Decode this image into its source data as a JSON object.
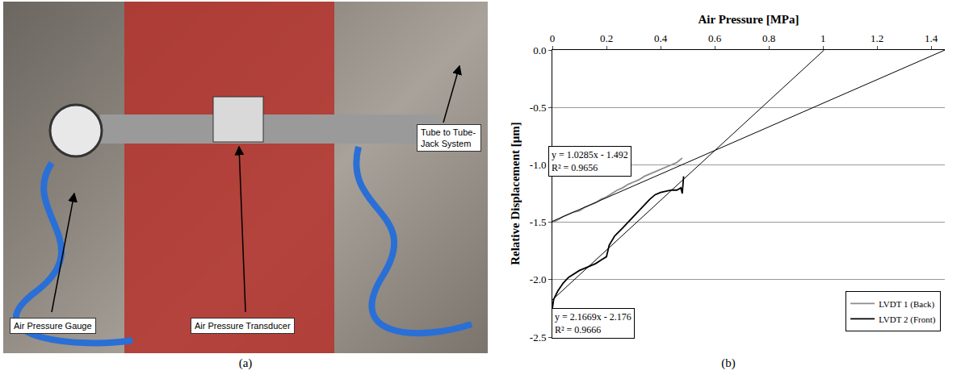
{
  "figure": {
    "panels": [
      {
        "letter": "(a)",
        "callouts": [
          "Air Pressure Gauge",
          "Air Pressure Transducer",
          "Tube to Tube-Jack System"
        ]
      },
      {
        "letter": "(b)"
      }
    ]
  },
  "chart_data": {
    "type": "line",
    "xlabel": "Air Pressure [MPa]",
    "ylabel": "Relative Displacement [μm]",
    "xlim": [
      0,
      1.45
    ],
    "xticks": [
      0,
      0.2,
      0.4,
      0.6,
      0.8,
      1,
      1.2,
      1.4
    ],
    "ylim": [
      -2.5,
      0
    ],
    "yticks": [
      {
        "value": 0,
        "label": "0.0"
      },
      -0.5,
      {
        "value": -1,
        "label": "-1.0"
      },
      -1.5,
      {
        "value": -2,
        "label": "-2.0"
      },
      -2.5
    ],
    "grid": true,
    "legend": "bottom right",
    "series": [
      {
        "name": "LVDT 1 (Back)",
        "color": "#8c8c8c",
        "x": [
          0,
          0.02,
          0.04,
          0.06,
          0.08,
          0.1,
          0.12,
          0.14,
          0.16,
          0.18,
          0.2,
          0.22,
          0.24,
          0.26,
          0.28,
          0.3,
          0.32,
          0.34,
          0.36,
          0.38,
          0.4,
          0.42,
          0.44,
          0.46,
          0.48
        ],
        "values": [
          -1.5,
          -1.48,
          -1.45,
          -1.43,
          -1.41,
          -1.4,
          -1.37,
          -1.35,
          -1.33,
          -1.3,
          -1.28,
          -1.25,
          -1.22,
          -1.2,
          -1.17,
          -1.15,
          -1.13,
          -1.1,
          -1.08,
          -1.06,
          -1.04,
          -1.02,
          -1.0,
          -0.98,
          -0.94
        ]
      },
      {
        "name": "LVDT 2 (Front)",
        "color": "#000000",
        "x": [
          0,
          0.005,
          0.02,
          0.04,
          0.06,
          0.08,
          0.1,
          0.12,
          0.14,
          0.16,
          0.18,
          0.2,
          0.21,
          0.23,
          0.26,
          0.3,
          0.34,
          0.36,
          0.38,
          0.4,
          0.42,
          0.44,
          0.46,
          0.475,
          0.48,
          0.485
        ],
        "values": [
          -2.25,
          -2.17,
          -2.1,
          -2.03,
          -1.98,
          -1.95,
          -1.92,
          -1.9,
          -1.88,
          -1.86,
          -1.83,
          -1.8,
          -1.7,
          -1.62,
          -1.55,
          -1.45,
          -1.35,
          -1.3,
          -1.26,
          -1.24,
          -1.23,
          -1.22,
          -1.22,
          -1.2,
          -1.25,
          -1.1
        ]
      },
      {
        "color": "#000000",
        "x": [
          0,
          1.4507
        ],
        "values": [
          -1.492,
          0
        ]
      },
      {
        "color": "#000000",
        "x": [
          0,
          1.0042
        ],
        "values": [
          -2.176,
          0
        ]
      }
    ],
    "annotations": [
      {
        "text": [
          "y = 1.0285x - 1.492",
          "R² = 0.9656"
        ],
        "x": 0.14,
        "y": -0.97
      },
      {
        "text": [
          "y = 2.1669x - 2.176",
          "R² = 0.9666"
        ],
        "x": 0.15,
        "y": -2.38
      }
    ]
  }
}
